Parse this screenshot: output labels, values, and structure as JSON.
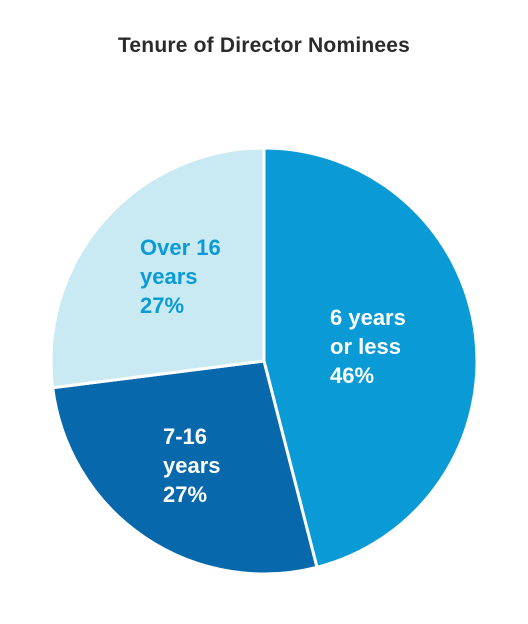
{
  "chart_data": {
    "type": "pie",
    "title": "Tenure of Director Nominees",
    "slices": [
      {
        "label_lines": [
          "6 years",
          "or less",
          "46%"
        ],
        "category": "6 years or less",
        "value": 46,
        "color": "#0a9ad6",
        "label_color": "#ffffff"
      },
      {
        "label_lines": [
          "7-16",
          "years",
          "27%"
        ],
        "category": "7-16 years",
        "value": 27,
        "color": "#0868ac",
        "label_color": "#ffffff"
      },
      {
        "label_lines": [
          "Over 16",
          "years",
          "27%"
        ],
        "category": "Over 16 years",
        "value": 27,
        "color": "#c9e9f3",
        "label_color": "#0a9ad6"
      }
    ]
  }
}
